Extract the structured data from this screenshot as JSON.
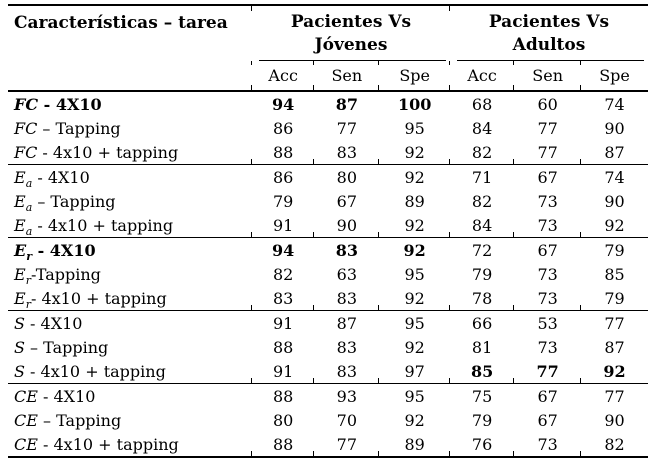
{
  "page": {
    "background": "#ffffff",
    "text_color": "#000000"
  },
  "table": {
    "header": {
      "feature_col": "Características – tarea",
      "groups": [
        {
          "line1": "Pacientes Vs",
          "line2": "Jóvenes"
        },
        {
          "line1": "Pacientes Vs",
          "line2": "Adultos"
        }
      ],
      "subcols": [
        "Acc",
        "Sen",
        "Spe",
        "Acc",
        "Sen",
        "Spe"
      ]
    },
    "rows": [
      {
        "label": {
          "var": "FC",
          "sub": "",
          "rest": " - 4X10"
        },
        "bold_label": true,
        "values": [
          "94",
          "87",
          "100",
          "68",
          "60",
          "74"
        ],
        "bold": [
          true,
          true,
          true,
          false,
          false,
          false
        ],
        "group_end": false
      },
      {
        "label": {
          "var": "FC",
          "sub": "",
          "rest": " – Tapping"
        },
        "bold_label": false,
        "values": [
          "86",
          "77",
          "95",
          "84",
          "77",
          "90"
        ],
        "bold": [
          false,
          false,
          false,
          false,
          false,
          false
        ],
        "group_end": false
      },
      {
        "label": {
          "var": "FC",
          "sub": "",
          "rest": " - 4x10 + tapping"
        },
        "bold_label": false,
        "values": [
          "88",
          "83",
          "92",
          "82",
          "77",
          "87"
        ],
        "bold": [
          false,
          false,
          false,
          false,
          false,
          false
        ],
        "group_end": true
      },
      {
        "label": {
          "var": "E",
          "sub": "a",
          "rest": " - 4X10"
        },
        "bold_label": false,
        "values": [
          "86",
          "80",
          "92",
          "71",
          "67",
          "74"
        ],
        "bold": [
          false,
          false,
          false,
          false,
          false,
          false
        ],
        "group_end": false
      },
      {
        "label": {
          "var": "E",
          "sub": "a",
          "rest": " – Tapping"
        },
        "bold_label": false,
        "values": [
          "79",
          "67",
          "89",
          "82",
          "73",
          "90"
        ],
        "bold": [
          false,
          false,
          false,
          false,
          false,
          false
        ],
        "group_end": false
      },
      {
        "label": {
          "var": "E",
          "sub": "a",
          "rest": " - 4x10 + tapping"
        },
        "bold_label": false,
        "values": [
          "91",
          "90",
          "92",
          "84",
          "73",
          "92"
        ],
        "bold": [
          false,
          false,
          false,
          false,
          false,
          false
        ],
        "group_end": true
      },
      {
        "label": {
          "var": "E",
          "sub": "r",
          "rest": " - 4X10"
        },
        "bold_label": true,
        "values": [
          "94",
          "83",
          "92",
          "72",
          "67",
          "79"
        ],
        "bold": [
          true,
          true,
          true,
          false,
          false,
          false
        ],
        "group_end": false
      },
      {
        "label": {
          "var": "E",
          "sub": "r",
          "rest": "-Tapping"
        },
        "bold_label": false,
        "values": [
          "82",
          "63",
          "95",
          "79",
          "73",
          "85"
        ],
        "bold": [
          false,
          false,
          false,
          false,
          false,
          false
        ],
        "group_end": false
      },
      {
        "label": {
          "var": "E",
          "sub": "r",
          "rest": "- 4x10 + tapping"
        },
        "bold_label": false,
        "values": [
          "83",
          "83",
          "92",
          "78",
          "73",
          "79"
        ],
        "bold": [
          false,
          false,
          false,
          false,
          false,
          false
        ],
        "group_end": true
      },
      {
        "label": {
          "var": "S",
          "sub": "",
          "rest": " - 4X10"
        },
        "bold_label": false,
        "values": [
          "91",
          "87",
          "95",
          "66",
          "53",
          "77"
        ],
        "bold": [
          false,
          false,
          false,
          false,
          false,
          false
        ],
        "group_end": false
      },
      {
        "label": {
          "var": "S",
          "sub": "",
          "rest": " – Tapping"
        },
        "bold_label": false,
        "values": [
          "88",
          "83",
          "92",
          "81",
          "73",
          "87"
        ],
        "bold": [
          false,
          false,
          false,
          false,
          false,
          false
        ],
        "group_end": false
      },
      {
        "label": {
          "var": "S",
          "sub": "",
          "rest": " - 4x10 + tapping"
        },
        "bold_label": false,
        "values": [
          "91",
          "83",
          "97",
          "85",
          "77",
          "92"
        ],
        "bold": [
          false,
          false,
          false,
          true,
          true,
          true
        ],
        "group_end": true
      },
      {
        "label": {
          "var": "CE",
          "sub": "",
          "rest": " - 4X10"
        },
        "bold_label": false,
        "values": [
          "88",
          "93",
          "95",
          "75",
          "67",
          "77"
        ],
        "bold": [
          false,
          false,
          false,
          false,
          false,
          false
        ],
        "group_end": false
      },
      {
        "label": {
          "var": "CE",
          "sub": "",
          "rest": " – Tapping"
        },
        "bold_label": false,
        "values": [
          "80",
          "70",
          "92",
          "79",
          "67",
          "90"
        ],
        "bold": [
          false,
          false,
          false,
          false,
          false,
          false
        ],
        "group_end": false
      },
      {
        "label": {
          "var": "CE",
          "sub": "",
          "rest": " - 4x10 + tapping"
        },
        "bold_label": false,
        "values": [
          "88",
          "77",
          "89",
          "76",
          "73",
          "82"
        ],
        "bold": [
          false,
          false,
          false,
          false,
          false,
          false
        ],
        "group_end": false
      }
    ]
  }
}
